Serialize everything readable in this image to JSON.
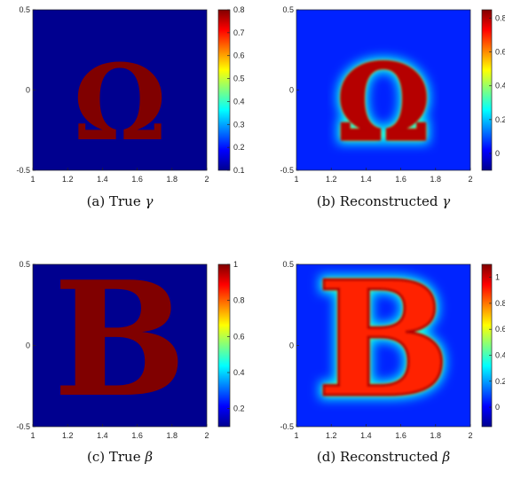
{
  "chart_data": [
    {
      "type": "heatmap",
      "panel": "a",
      "caption": "(a) True",
      "caption_symbol": "γ",
      "glyph": "Ω",
      "xlim": [
        1,
        2
      ],
      "ylim": [
        -0.5,
        0.5
      ],
      "x_ticks": [
        "1",
        "1.2",
        "1.4",
        "1.6",
        "1.8",
        "2"
      ],
      "y_ticks": [
        "-0.5",
        "0",
        "0.5"
      ],
      "colorbar_ticks": [
        "0.1",
        "0.2",
        "0.3",
        "0.4",
        "0.5",
        "0.6",
        "0.7",
        "0.8"
      ],
      "clim": [
        0.1,
        0.8
      ],
      "values": {
        "background": 0.1,
        "inclusion": 0.8
      },
      "reconstructed": false
    },
    {
      "type": "heatmap",
      "panel": "b",
      "caption": "(b) Reconstructed",
      "caption_symbol": "γ",
      "glyph": "Ω",
      "xlim": [
        1,
        2
      ],
      "ylim": [
        -0.5,
        0.5
      ],
      "x_ticks": [
        "1",
        "1.2",
        "1.4",
        "1.6",
        "1.8",
        "2"
      ],
      "y_ticks": [
        "-0.5",
        "0",
        "0.5"
      ],
      "colorbar_ticks": [
        "0",
        "0.2",
        "0.4",
        "0.6",
        "0.8"
      ],
      "clim": [
        -0.1,
        0.85
      ],
      "values": {
        "background": 0.05,
        "inclusion": 0.8
      },
      "reconstructed": true
    },
    {
      "type": "heatmap",
      "panel": "c",
      "caption": "(c) True",
      "caption_symbol": "β",
      "glyph": "B",
      "xlim": [
        1,
        2
      ],
      "ylim": [
        -0.5,
        0.5
      ],
      "x_ticks": [
        "1",
        "1.2",
        "1.4",
        "1.6",
        "1.8",
        "2"
      ],
      "y_ticks": [
        "-0.5",
        "0",
        "0.5"
      ],
      "colorbar_ticks": [
        "0.2",
        "0.4",
        "0.6",
        "0.8",
        "1"
      ],
      "clim": [
        0.1,
        1
      ],
      "values": {
        "background": 0.1,
        "inclusion": 1
      },
      "reconstructed": false
    },
    {
      "type": "heatmap",
      "panel": "d",
      "caption": "(d) Reconstructed",
      "caption_symbol": "β",
      "glyph": "B",
      "xlim": [
        1,
        2
      ],
      "ylim": [
        -0.5,
        0.5
      ],
      "x_ticks": [
        "1",
        "1.2",
        "1.4",
        "1.6",
        "1.8",
        "2"
      ],
      "y_ticks": [
        "-0.5",
        "0",
        "0.5"
      ],
      "colorbar_ticks": [
        "0",
        "0.2",
        "0.4",
        "0.6",
        "0.8",
        "1"
      ],
      "clim": [
        -0.15,
        1.1
      ],
      "values": {
        "background": 0.05,
        "inclusion": 0.9
      },
      "reconstructed": true
    }
  ]
}
